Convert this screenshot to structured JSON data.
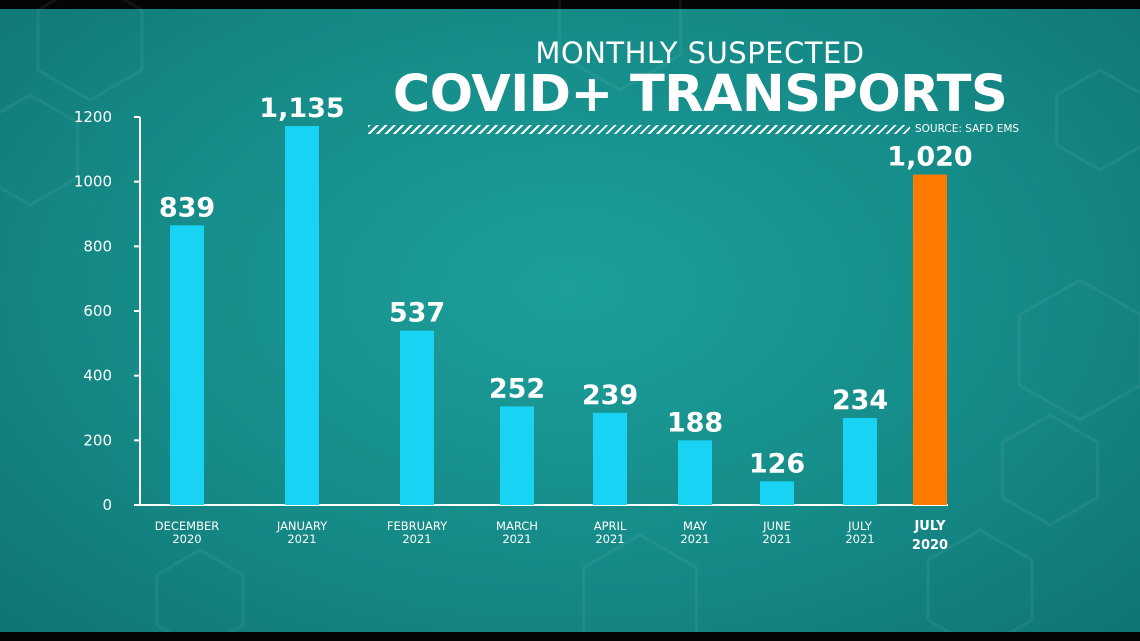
{
  "title_line1": "MONTHLY SUSPECTED",
  "title_line2": "COVID+ TRANSPORTS",
  "source": "SOURCE: SAFD EMS",
  "colors": {
    "bar": "#19d3f5",
    "bar_highlight": "#ff7a00",
    "background": "#158b88",
    "text": "#ffffff"
  },
  "chart_data": {
    "type": "bar",
    "title": "MONTHLY SUSPECTED COVID+ TRANSPORTS",
    "categories": [
      [
        "DECEMBER",
        "2020"
      ],
      [
        "JANUARY",
        "2021"
      ],
      [
        "FEBRUARY",
        "2021"
      ],
      [
        "MARCH",
        "2021"
      ],
      [
        "APRIL",
        "2021"
      ],
      [
        "MAY",
        "2021"
      ],
      [
        "JUNE",
        "2021"
      ],
      [
        "JULY",
        "2021"
      ],
      [
        "JULY",
        "2020"
      ]
    ],
    "values": [
      839,
      1135,
      537,
      252,
      239,
      188,
      126,
      234,
      1020
    ],
    "bar_heights": [
      865,
      1172,
      539,
      305,
      285,
      200,
      73,
      269,
      1022
    ],
    "value_labels": [
      "839",
      "1,135",
      "537",
      "252",
      "239",
      "188",
      "126",
      "234",
      "1,020"
    ],
    "highlight_index": 8,
    "yticks": [
      0,
      200,
      400,
      600,
      800,
      1000,
      1200
    ],
    "ylim": [
      0,
      1200
    ],
    "grid": false,
    "xlabel": "",
    "ylabel": ""
  }
}
